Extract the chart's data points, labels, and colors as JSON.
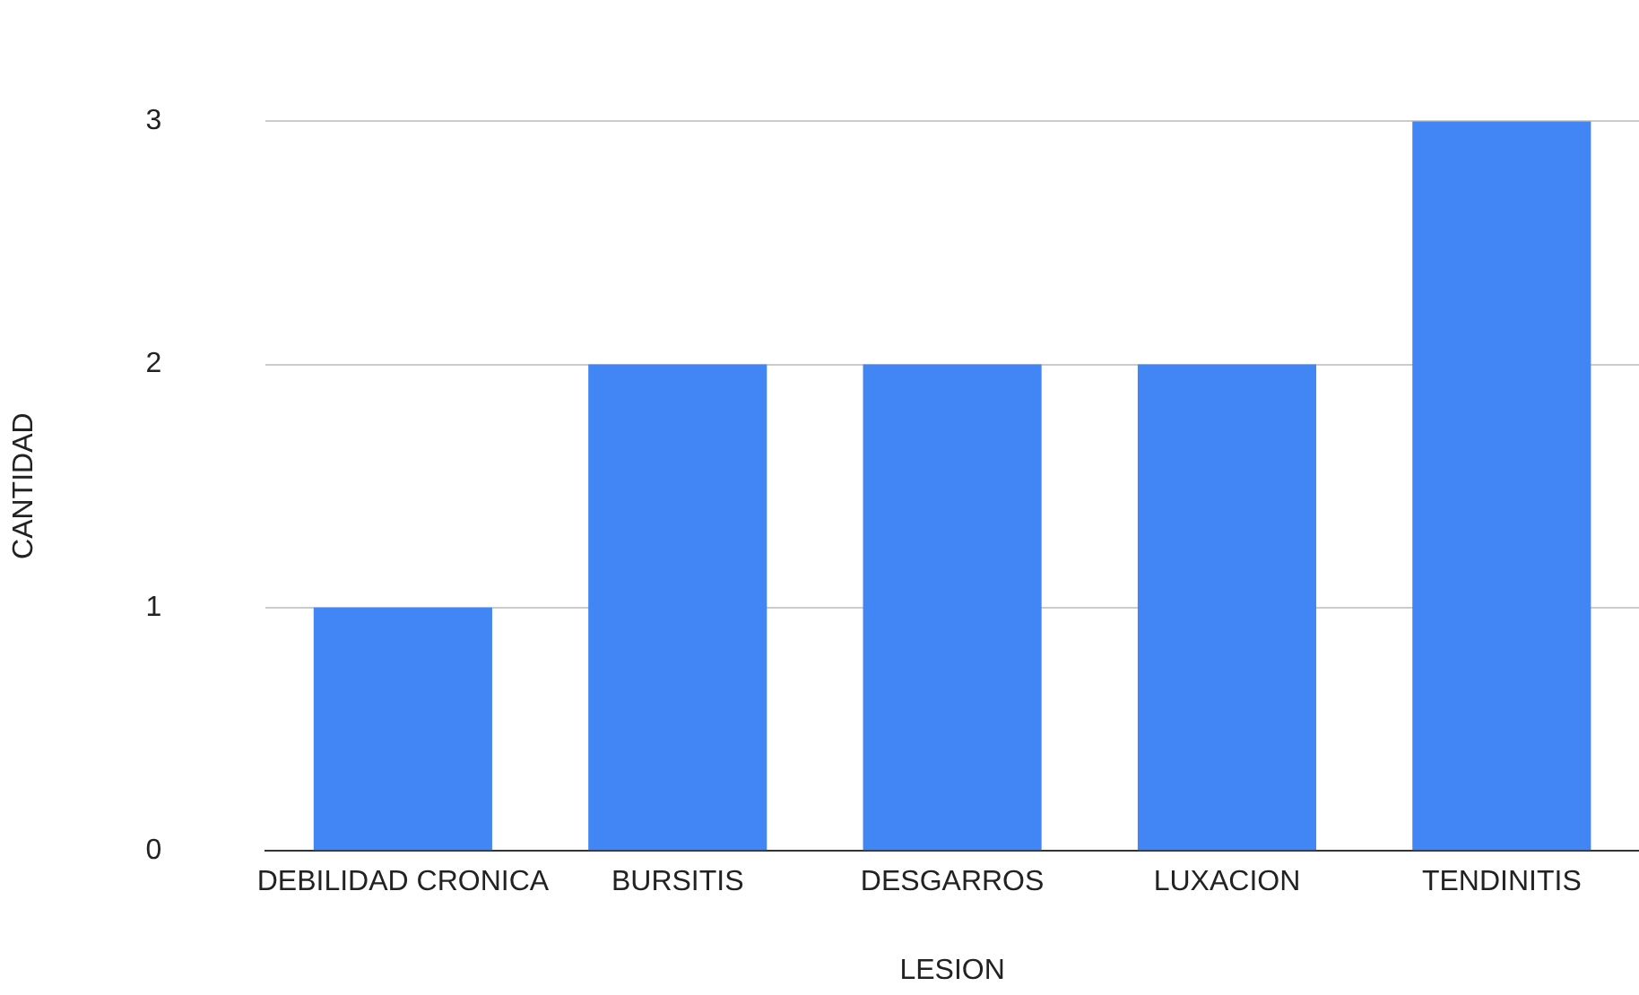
{
  "chart_data": {
    "type": "bar",
    "xlabel": "LESION",
    "ylabel": "CANTIDAD",
    "categories": [
      "DEBILIDAD CRONICA",
      "BURSITIS",
      "DESGARROS",
      "LUXACION",
      "TENDINITIS"
    ],
    "values": [
      1,
      2,
      2,
      2,
      3
    ],
    "color": "#4285f4",
    "ylim": [
      0,
      3
    ],
    "yticks": [
      0,
      1,
      2,
      3
    ],
    "grid": "y"
  }
}
